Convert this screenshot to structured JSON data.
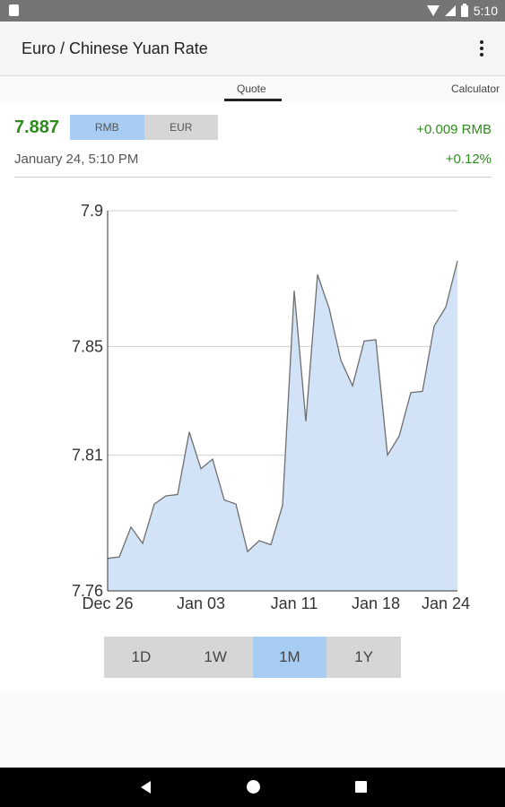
{
  "status_bar": {
    "time": "5:10"
  },
  "app_bar": {
    "title": "Euro / Chinese Yuan Rate",
    "menu_icon": "more-vert-icon"
  },
  "tabs": [
    {
      "label": "Quote",
      "selected": true
    },
    {
      "label": "Calculator",
      "selected": false
    }
  ],
  "quote": {
    "rate": "7.887",
    "currencies": [
      {
        "label": "RMB",
        "selected": true
      },
      {
        "label": "EUR",
        "selected": false
      }
    ],
    "change_abs": "+0.009 RMB",
    "change_pct": "+0.12%",
    "timestamp": "January 24, 5:10 PM"
  },
  "colors": {
    "positive": "#2e8b1e",
    "selected": "#a8cdf2",
    "unselected": "#d6d6d6",
    "area_fill": "#d3e3f7"
  },
  "chart_data": {
    "type": "area",
    "ylim": [
      7.76,
      7.9
    ],
    "y_ticks": [
      "7.9",
      "7.85",
      "7.81",
      "7.76"
    ],
    "x_ticks": [
      "Dec 26",
      "Jan 03",
      "Jan 11",
      "Jan 18",
      "Jan 24"
    ],
    "grid": true,
    "points": [
      [
        "Dec 26",
        7.772
      ],
      [
        "Dec 27",
        7.7725
      ],
      [
        "Dec 28",
        7.7835
      ],
      [
        "Dec 29",
        7.7775
      ],
      [
        "Dec 30",
        7.792
      ],
      [
        "Dec 31",
        7.795
      ],
      [
        "Jan 01",
        7.7955
      ],
      [
        "Jan 02",
        7.8185
      ],
      [
        "Jan 03",
        7.805
      ],
      [
        "Jan 04",
        7.8085
      ],
      [
        "Jan 05",
        7.7935
      ],
      [
        "Jan 06",
        7.792
      ],
      [
        "Jan 07",
        7.7745
      ],
      [
        "Jan 08",
        7.7785
      ],
      [
        "Jan 09",
        7.777
      ],
      [
        "Jan 10",
        7.7915
      ],
      [
        "Jan 11",
        7.8705
      ],
      [
        "Jan 12",
        7.8225
      ],
      [
        "Jan 13",
        7.8765
      ],
      [
        "Jan 14",
        7.864
      ],
      [
        "Jan 15",
        7.845
      ],
      [
        "Jan 16",
        7.8355
      ],
      [
        "Jan 17",
        7.852
      ],
      [
        "Jan 18",
        7.8525
      ],
      [
        "Jan 19",
        7.81
      ],
      [
        "Jan 20",
        7.817
      ],
      [
        "Jan 21",
        7.833
      ],
      [
        "Jan 22",
        7.8335
      ],
      [
        "Jan 23",
        7.8575
      ],
      [
        "Jan 24",
        7.8645
      ],
      [
        "Jan 25",
        7.8815
      ]
    ]
  },
  "ranges": [
    {
      "label": "1D",
      "selected": false
    },
    {
      "label": "1W",
      "selected": false
    },
    {
      "label": "1M",
      "selected": true
    },
    {
      "label": "1Y",
      "selected": false
    }
  ]
}
